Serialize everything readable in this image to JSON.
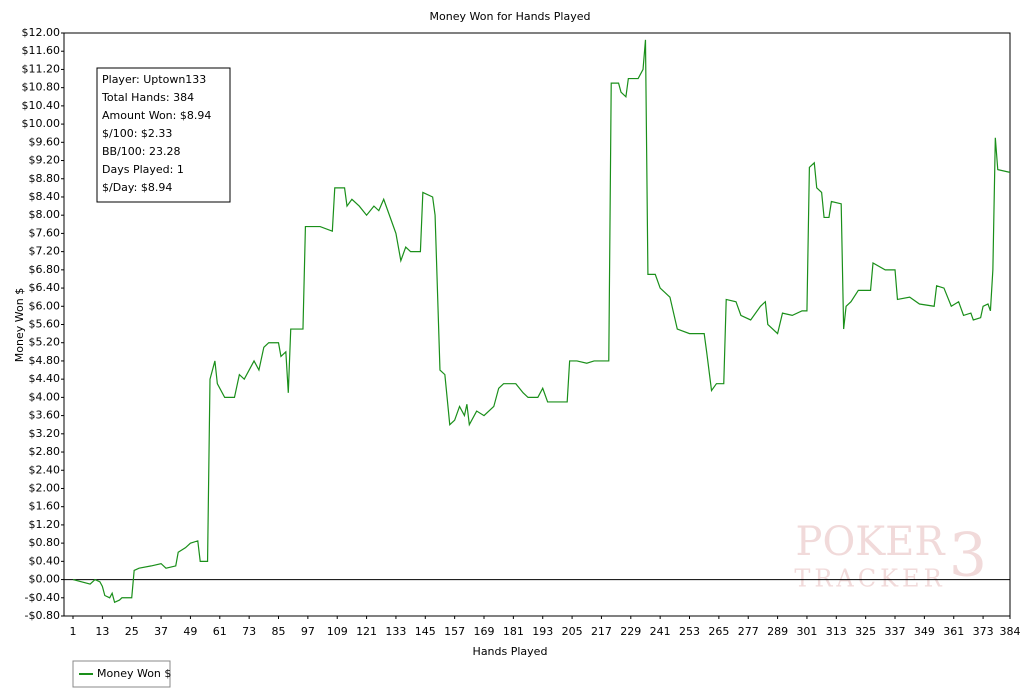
{
  "chart_data": {
    "type": "line",
    "title": "Money Won for Hands Played",
    "x_label": "Hands Played",
    "y_label": "Money Won $",
    "info_box": [
      "Player: Uptown133",
      "Total Hands: 384",
      "Amount Won: $8.94",
      "$/100: $2.33",
      "BB/100: 23.28",
      "Days Played: 1",
      "$/Day: $8.94"
    ],
    "watermark": [
      "POKER",
      "TRACKER",
      "3"
    ],
    "zero_line": true,
    "grid": false,
    "legend": "bottom-left",
    "xlim": [
      1,
      384
    ],
    "xticks": [
      1,
      13,
      25,
      37,
      49,
      61,
      73,
      85,
      97,
      109,
      121,
      133,
      145,
      157,
      169,
      181,
      193,
      205,
      217,
      229,
      241,
      253,
      265,
      277,
      289,
      301,
      313,
      325,
      337,
      349,
      361,
      373,
      384
    ],
    "ylim": [
      -0.8,
      12
    ],
    "yticks": [
      {
        "value": -0.8,
        "label": "-$0.80"
      },
      {
        "value": -0.4,
        "label": "-$0.40"
      },
      {
        "value": 0,
        "label": "$0.00"
      },
      {
        "value": 0.4,
        "label": "$0.40"
      },
      {
        "value": 0.8,
        "label": "$0.80"
      },
      {
        "value": 1.2,
        "label": "$1.20"
      },
      {
        "value": 1.6,
        "label": "$1.60"
      },
      {
        "value": 2.0,
        "label": "$2.00"
      },
      {
        "value": 2.4,
        "label": "$2.40"
      },
      {
        "value": 2.8,
        "label": "$2.80"
      },
      {
        "value": 3.2,
        "label": "$3.20"
      },
      {
        "value": 3.6,
        "label": "$3.60"
      },
      {
        "value": 4.0,
        "label": "$4.00"
      },
      {
        "value": 4.4,
        "label": "$4.40"
      },
      {
        "value": 4.8,
        "label": "$4.80"
      },
      {
        "value": 5.2,
        "label": "$5.20"
      },
      {
        "value": 5.6,
        "label": "$5.60"
      },
      {
        "value": 6.0,
        "label": "$6.00"
      },
      {
        "value": 6.4,
        "label": "$6.40"
      },
      {
        "value": 6.8,
        "label": "$6.80"
      },
      {
        "value": 7.2,
        "label": "$7.20"
      },
      {
        "value": 7.6,
        "label": "$7.60"
      },
      {
        "value": 8.0,
        "label": "$8.00"
      },
      {
        "value": 8.4,
        "label": "$8.40"
      },
      {
        "value": 8.8,
        "label": "$8.80"
      },
      {
        "value": 9.2,
        "label": "$9.20"
      },
      {
        "value": 9.6,
        "label": "$9.60"
      },
      {
        "value": 10.0,
        "label": "$10.00"
      },
      {
        "value": 10.4,
        "label": "$10.40"
      },
      {
        "value": 10.8,
        "label": "$10.80"
      },
      {
        "value": 11.2,
        "label": "$11.20"
      },
      {
        "value": 11.6,
        "label": "$11.60"
      },
      {
        "value": 12.0,
        "label": "$12.00"
      }
    ],
    "x": [
      1,
      8,
      10,
      12,
      13,
      14,
      16,
      17,
      18,
      20,
      21,
      25,
      26,
      28,
      33,
      37,
      39,
      43,
      44,
      47,
      49,
      52,
      53,
      56,
      57,
      59,
      60,
      63,
      67,
      69,
      71,
      75,
      77,
      79,
      81,
      85,
      86,
      88,
      89,
      90,
      95,
      96,
      102,
      107,
      108,
      112,
      113,
      115,
      118,
      121,
      124,
      126,
      128,
      131,
      133,
      135,
      137,
      139,
      143,
      144,
      148,
      149,
      151,
      153,
      155,
      157,
      159,
      161,
      162,
      163,
      166,
      169,
      173,
      175,
      177,
      182,
      185,
      187,
      191,
      193,
      195,
      203,
      204,
      207,
      211,
      214,
      220,
      221,
      224,
      225,
      227,
      228,
      232,
      234,
      235,
      236,
      239,
      241,
      245,
      248,
      253,
      259,
      260,
      262,
      264,
      267,
      268,
      272,
      274,
      278,
      282,
      284,
      285,
      289,
      291,
      295,
      299,
      301,
      302,
      304,
      305,
      307,
      308,
      310,
      311,
      315,
      316,
      317,
      319,
      322,
      327,
      328,
      333,
      337,
      338,
      343,
      347,
      353,
      354,
      357,
      360,
      363,
      365,
      368,
      369,
      372,
      373,
      375,
      376,
      377,
      378,
      379,
      384
    ],
    "series": [
      {
        "name": "Money Won $",
        "color": "#1a8f1a",
        "values": [
          0,
          -0.1,
          0,
          -0.05,
          -0.15,
          -0.35,
          -0.4,
          -0.3,
          -0.5,
          -0.45,
          -0.4,
          -0.4,
          0.2,
          0.25,
          0.3,
          0.35,
          0.25,
          0.3,
          0.6,
          0.7,
          0.8,
          0.85,
          0.4,
          0.4,
          4.4,
          4.8,
          4.3,
          4.0,
          4.0,
          4.5,
          4.4,
          4.8,
          4.6,
          5.1,
          5.2,
          5.2,
          4.9,
          5.0,
          4.1,
          5.5,
          5.5,
          7.75,
          7.75,
          7.65,
          8.6,
          8.6,
          8.2,
          8.35,
          8.2,
          8.0,
          8.2,
          8.1,
          8.35,
          7.9,
          7.6,
          7.0,
          7.3,
          7.2,
          7.2,
          8.5,
          8.4,
          8.0,
          4.6,
          4.5,
          3.4,
          3.5,
          3.8,
          3.6,
          3.85,
          3.4,
          3.7,
          3.6,
          3.8,
          4.2,
          4.3,
          4.3,
          4.1,
          4.0,
          4.0,
          4.2,
          3.9,
          3.9,
          4.8,
          4.8,
          4.75,
          4.8,
          4.8,
          10.9,
          10.9,
          10.7,
          10.6,
          11.0,
          11.0,
          11.2,
          11.85,
          6.7,
          6.7,
          6.4,
          6.2,
          5.5,
          5.4,
          5.4,
          5.0,
          4.15,
          4.3,
          4.3,
          6.15,
          6.1,
          5.8,
          5.7,
          6.0,
          6.1,
          5.6,
          5.4,
          5.85,
          5.8,
          5.9,
          5.9,
          9.05,
          9.15,
          8.6,
          8.5,
          7.95,
          7.95,
          8.3,
          8.25,
          5.5,
          6.0,
          6.1,
          6.35,
          6.35,
          6.95,
          6.8,
          6.8,
          6.15,
          6.2,
          6.05,
          6.0,
          6.45,
          6.4,
          6.0,
          6.1,
          5.8,
          5.85,
          5.7,
          5.75,
          6.0,
          6.05,
          5.9,
          6.8,
          9.7,
          9.0,
          8.94
        ]
      }
    ]
  }
}
